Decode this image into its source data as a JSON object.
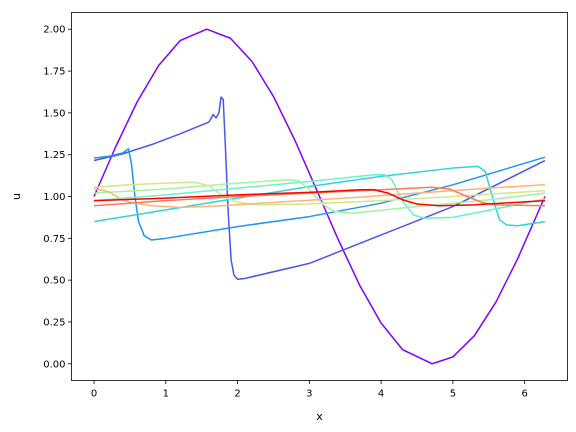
{
  "chart_data": {
    "type": "line",
    "title": "",
    "xlabel": "x",
    "ylabel": "u",
    "xlim": [
      -0.314,
      6.597
    ],
    "ylim": [
      -0.1,
      2.1
    ],
    "xticks": [
      0,
      1,
      2,
      3,
      4,
      5,
      6
    ],
    "yticks": [
      0.0,
      0.25,
      0.5,
      0.75,
      1.0,
      1.25,
      1.5,
      1.75,
      2.0
    ],
    "ytick_labels": [
      "0.00",
      "0.25",
      "0.50",
      "0.75",
      "1.00",
      "1.25",
      "1.50",
      "1.75",
      "2.00"
    ],
    "grid": false,
    "legend": false,
    "series": [
      {
        "color": "#8000ff",
        "points": [
          [
            0.0,
            1.0
          ],
          [
            0.3,
            1.296
          ],
          [
            0.6,
            1.565
          ],
          [
            0.9,
            1.783
          ],
          [
            1.2,
            1.932
          ],
          [
            1.5707,
            2.0
          ],
          [
            1.9,
            1.946
          ],
          [
            2.2,
            1.808
          ],
          [
            2.5,
            1.598
          ],
          [
            2.8,
            1.335
          ],
          [
            3.1416,
            1.0
          ],
          [
            3.4,
            0.745
          ],
          [
            3.7,
            0.47
          ],
          [
            4.0,
            0.243
          ],
          [
            4.3,
            0.084
          ],
          [
            4.7124,
            0.0
          ],
          [
            5.0,
            0.041
          ],
          [
            5.3,
            0.168
          ],
          [
            5.6,
            0.369
          ],
          [
            5.9,
            0.626
          ],
          [
            6.2832,
            1.0
          ]
        ]
      },
      {
        "color": "#4a56f0",
        "points": [
          [
            0.0,
            1.215
          ],
          [
            0.4,
            1.255
          ],
          [
            0.8,
            1.31
          ],
          [
            1.2,
            1.375
          ],
          [
            1.6,
            1.445
          ],
          [
            1.66,
            1.49
          ],
          [
            1.7,
            1.47
          ],
          [
            1.74,
            1.5
          ],
          [
            1.77,
            1.595
          ],
          [
            1.8,
            1.58
          ],
          [
            1.83,
            1.3
          ],
          [
            1.87,
            0.9
          ],
          [
            1.91,
            0.62
          ],
          [
            1.95,
            0.53
          ],
          [
            2.0,
            0.505
          ],
          [
            2.1,
            0.51
          ],
          [
            3.0,
            0.6
          ],
          [
            4.0,
            0.77
          ],
          [
            5.0,
            0.94
          ],
          [
            6.2832,
            1.215
          ]
        ]
      },
      {
        "color": "#1e96f0",
        "points": [
          [
            0.0,
            1.23
          ],
          [
            0.2,
            1.24
          ],
          [
            0.4,
            1.26
          ],
          [
            0.48,
            1.285
          ],
          [
            0.52,
            1.2
          ],
          [
            0.57,
            1.0
          ],
          [
            0.62,
            0.85
          ],
          [
            0.7,
            0.765
          ],
          [
            0.8,
            0.74
          ],
          [
            1.0,
            0.75
          ],
          [
            2.0,
            0.82
          ],
          [
            3.0,
            0.88
          ],
          [
            4.0,
            0.96
          ],
          [
            5.0,
            1.07
          ],
          [
            6.2832,
            1.235
          ]
        ]
      },
      {
        "color": "#2fd3e0",
        "points": [
          [
            0.0,
            0.85
          ],
          [
            1.0,
            0.92
          ],
          [
            2.0,
            0.99
          ],
          [
            3.0,
            1.06
          ],
          [
            4.0,
            1.12
          ],
          [
            5.0,
            1.17
          ],
          [
            5.35,
            1.18
          ],
          [
            5.45,
            1.15
          ],
          [
            5.55,
            1.0
          ],
          [
            5.65,
            0.86
          ],
          [
            5.75,
            0.83
          ],
          [
            5.9,
            0.825
          ],
          [
            6.2832,
            0.85
          ]
        ]
      },
      {
        "color": "#6af5c8",
        "points": [
          [
            0.0,
            0.975
          ],
          [
            1.0,
            1.01
          ],
          [
            2.0,
            1.05
          ],
          [
            3.0,
            1.09
          ],
          [
            3.9,
            1.13
          ],
          [
            4.05,
            1.13
          ],
          [
            4.15,
            1.1
          ],
          [
            4.3,
            0.97
          ],
          [
            4.45,
            0.89
          ],
          [
            4.6,
            0.87
          ],
          [
            5.0,
            0.875
          ],
          [
            6.2832,
            0.985
          ]
        ]
      },
      {
        "color": "#a2f4a0",
        "points": [
          [
            0.0,
            1.02
          ],
          [
            1.0,
            1.045
          ],
          [
            2.0,
            1.08
          ],
          [
            2.7,
            1.1
          ],
          [
            2.85,
            1.095
          ],
          [
            3.0,
            1.04
          ],
          [
            3.2,
            0.95
          ],
          [
            3.35,
            0.91
          ],
          [
            3.6,
            0.9
          ],
          [
            4.5,
            0.94
          ],
          [
            5.5,
            0.98
          ],
          [
            6.2832,
            1.02
          ]
        ]
      },
      {
        "color": "#d6e586",
        "points": [
          [
            0.0,
            1.055
          ],
          [
            0.5,
            1.07
          ],
          [
            1.0,
            1.08
          ],
          [
            1.4,
            1.085
          ],
          [
            1.6,
            1.065
          ],
          [
            1.8,
            1.0
          ],
          [
            2.0,
            0.965
          ],
          [
            2.3,
            0.95
          ],
          [
            3.0,
            0.955
          ],
          [
            4.0,
            0.975
          ],
          [
            5.0,
            1.0
          ],
          [
            6.2832,
            1.035
          ]
        ]
      },
      {
        "color": "#fdb475",
        "points": [
          [
            0.0,
            1.045
          ],
          [
            0.2,
            1.03
          ],
          [
            0.35,
            0.99
          ],
          [
            0.5,
            0.965
          ],
          [
            0.8,
            0.945
          ],
          [
            1.2,
            0.935
          ],
          [
            1.8,
            0.945
          ],
          [
            2.5,
            0.965
          ],
          [
            3.5,
            0.99
          ],
          [
            4.5,
            1.02
          ],
          [
            5.5,
            1.05
          ],
          [
            6.2832,
            1.07
          ]
        ]
      },
      {
        "color": "#ff7a54",
        "points": [
          [
            0.0,
            0.945
          ],
          [
            1.0,
            0.975
          ],
          [
            2.0,
            1.0
          ],
          [
            3.0,
            1.02
          ],
          [
            4.0,
            1.04
          ],
          [
            4.7,
            1.055
          ],
          [
            4.95,
            1.045
          ],
          [
            5.2,
            1.0
          ],
          [
            5.4,
            0.965
          ],
          [
            5.6,
            0.95
          ],
          [
            6.2832,
            0.945
          ]
        ]
      },
      {
        "color": "#ff0000",
        "points": [
          [
            0.0,
            0.975
          ],
          [
            1.0,
            0.99
          ],
          [
            2.0,
            1.01
          ],
          [
            3.0,
            1.025
          ],
          [
            3.7,
            1.04
          ],
          [
            3.9,
            1.04
          ],
          [
            4.1,
            1.02
          ],
          [
            4.3,
            0.98
          ],
          [
            4.5,
            0.955
          ],
          [
            4.8,
            0.945
          ],
          [
            5.3,
            0.95
          ],
          [
            6.2832,
            0.975
          ]
        ]
      }
    ]
  }
}
